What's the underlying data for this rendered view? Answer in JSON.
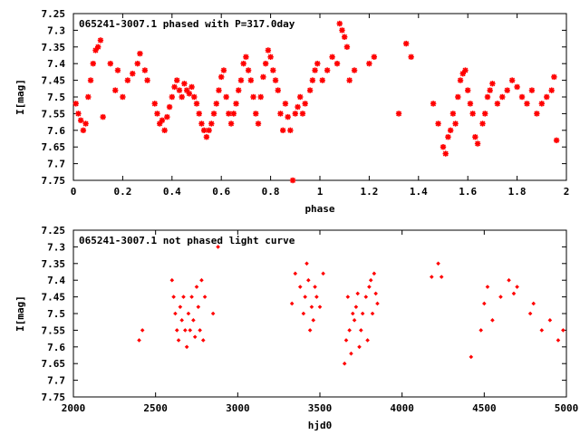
{
  "chart_data": [
    {
      "type": "scatter",
      "title": "065241-3007.1 phased with P=317.0day",
      "xlabel": "phase",
      "ylabel": "I[mag]",
      "xlim": [
        0,
        2
      ],
      "ylim": [
        7.25,
        7.75
      ],
      "y_inverted": true,
      "grid": false,
      "x_ticks": [
        "0",
        "0.2",
        "0.4",
        "0.6",
        "0.8",
        "1",
        "1.2",
        "1.4",
        "1.6",
        "1.8",
        "2"
      ],
      "y_ticks": [
        "7.25",
        "7.3",
        "7.35",
        "7.4",
        "7.45",
        "7.5",
        "7.55",
        "7.6",
        "7.65",
        "7.7",
        "7.75"
      ],
      "marker": "asterisk",
      "color": "#ff0000",
      "series": [
        {
          "x": [
            0.01,
            0.02,
            0.03,
            0.04,
            0.05,
            0.06,
            0.07,
            0.08,
            0.09,
            0.1,
            0.11,
            0.12,
            0.15,
            0.17,
            0.18,
            0.2,
            0.22,
            0.24,
            0.26,
            0.27,
            0.29,
            0.3,
            0.33,
            0.34,
            0.35,
            0.36,
            0.37,
            0.38,
            0.39,
            0.4,
            0.41,
            0.42,
            0.43,
            0.44,
            0.45,
            0.46,
            0.47,
            0.48,
            0.49,
            0.5,
            0.51,
            0.52,
            0.53,
            0.54,
            0.55,
            0.56,
            0.57,
            0.58,
            0.59,
            0.6,
            0.61,
            0.62,
            0.63,
            0.64,
            0.65,
            0.66,
            0.67,
            0.68,
            0.69,
            0.7,
            0.71,
            0.72,
            0.73,
            0.74,
            0.75,
            0.76,
            0.77,
            0.78,
            0.79,
            0.8,
            0.81,
            0.82,
            0.83,
            0.84,
            0.85,
            0.86,
            0.87,
            0.88,
            0.89,
            0.9,
            0.91,
            0.92,
            0.93,
            0.94,
            0.96,
            0.97,
            0.98,
            0.99,
            1.01,
            1.03,
            1.05,
            1.07,
            1.08,
            1.09,
            1.1,
            1.11,
            1.12,
            1.14,
            1.2,
            1.22,
            1.32,
            1.35,
            1.37,
            1.46,
            1.48,
            1.5,
            1.51,
            1.52,
            1.53,
            1.54,
            1.55,
            1.56,
            1.57,
            1.58,
            1.59,
            1.6,
            1.61,
            1.62,
            1.63,
            1.64,
            1.66,
            1.67,
            1.68,
            1.69,
            1.7,
            1.72,
            1.74,
            1.76,
            1.78,
            1.8,
            1.82,
            1.84,
            1.86,
            1.88,
            1.9,
            1.92,
            1.94,
            1.95,
            1.96
          ],
          "y": [
            7.52,
            7.55,
            7.57,
            7.6,
            7.58,
            7.5,
            7.45,
            7.4,
            7.36,
            7.35,
            7.33,
            7.56,
            7.4,
            7.48,
            7.42,
            7.5,
            7.45,
            7.43,
            7.4,
            7.37,
            7.42,
            7.45,
            7.52,
            7.55,
            7.58,
            7.57,
            7.6,
            7.56,
            7.53,
            7.5,
            7.47,
            7.45,
            7.48,
            7.5,
            7.46,
            7.48,
            7.49,
            7.47,
            7.5,
            7.52,
            7.55,
            7.58,
            7.6,
            7.62,
            7.6,
            7.58,
            7.55,
            7.52,
            7.48,
            7.44,
            7.42,
            7.5,
            7.55,
            7.58,
            7.55,
            7.52,
            7.48,
            7.45,
            7.4,
            7.38,
            7.42,
            7.45,
            7.5,
            7.55,
            7.58,
            7.5,
            7.44,
            7.4,
            7.36,
            7.38,
            7.42,
            7.45,
            7.48,
            7.55,
            7.6,
            7.52,
            7.56,
            7.6,
            7.75,
            7.55,
            7.53,
            7.5,
            7.55,
            7.52,
            7.48,
            7.45,
            7.42,
            7.4,
            7.45,
            7.42,
            7.38,
            7.4,
            7.28,
            7.3,
            7.32,
            7.35,
            7.45,
            7.42,
            7.4,
            7.38,
            7.55,
            7.34,
            7.38,
            7.52,
            7.58,
            7.65,
            7.67,
            7.62,
            7.6,
            7.55,
            7.58,
            7.5,
            7.45,
            7.43,
            7.42,
            7.48,
            7.52,
            7.55,
            7.62,
            7.64,
            7.58,
            7.55,
            7.5,
            7.48,
            7.46,
            7.52,
            7.5,
            7.48,
            7.45,
            7.47,
            7.5,
            7.52,
            7.48,
            7.55,
            7.52,
            7.5,
            7.48,
            7.44,
            7.63
          ]
        }
      ]
    },
    {
      "type": "scatter",
      "title": "065241-3007.1 not phased light curve",
      "xlabel": "hjd0",
      "ylabel": "I[mag]",
      "xlim": [
        2000,
        5000
      ],
      "ylim": [
        7.25,
        7.75
      ],
      "y_inverted": true,
      "grid": false,
      "x_ticks": [
        "2000",
        "2500",
        "3000",
        "3500",
        "4000",
        "4500",
        "5000"
      ],
      "y_ticks": [
        "7.25",
        "7.3",
        "7.35",
        "7.4",
        "7.45",
        "7.5",
        "7.55",
        "7.6",
        "7.65",
        "7.7",
        "7.75"
      ],
      "marker": "diamond",
      "color": "#ff0000",
      "series": [
        {
          "x": [
            2400,
            2420,
            2600,
            2610,
            2620,
            2630,
            2640,
            2650,
            2660,
            2670,
            2680,
            2690,
            2700,
            2710,
            2720,
            2730,
            2740,
            2750,
            2760,
            2770,
            2780,
            2790,
            2800,
            2850,
            2880,
            3330,
            3350,
            3380,
            3400,
            3410,
            3420,
            3430,
            3440,
            3450,
            3460,
            3470,
            3480,
            3500,
            3520,
            3650,
            3660,
            3670,
            3680,
            3690,
            3700,
            3710,
            3720,
            3730,
            3740,
            3750,
            3760,
            3780,
            3790,
            3800,
            3810,
            3820,
            3830,
            3840,
            3850,
            4180,
            4220,
            4240,
            4420,
            4480,
            4500,
            4520,
            4550,
            4600,
            4650,
            4680,
            4700,
            4780,
            4800,
            4850,
            4900,
            4950,
            4980
          ],
          "y": [
            7.58,
            7.55,
            7.4,
            7.45,
            7.5,
            7.55,
            7.58,
            7.48,
            7.52,
            7.45,
            7.55,
            7.6,
            7.5,
            7.55,
            7.45,
            7.52,
            7.57,
            7.42,
            7.48,
            7.55,
            7.4,
            7.58,
            7.45,
            7.5,
            7.3,
            7.47,
            7.38,
            7.42,
            7.5,
            7.45,
            7.35,
            7.4,
            7.55,
            7.48,
            7.52,
            7.42,
            7.45,
            7.48,
            7.38,
            7.65,
            7.58,
            7.45,
            7.55,
            7.62,
            7.5,
            7.52,
            7.48,
            7.44,
            7.6,
            7.55,
            7.5,
            7.45,
            7.58,
            7.42,
            7.4,
            7.5,
            7.38,
            7.44,
            7.47,
            7.39,
            7.35,
            7.39,
            7.63,
            7.55,
            7.47,
            7.42,
            7.52,
            7.45,
            7.4,
            7.44,
            7.42,
            7.5,
            7.47,
            7.55,
            7.52,
            7.58,
            7.55
          ]
        }
      ]
    }
  ]
}
